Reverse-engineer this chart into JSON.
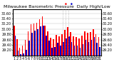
{
  "title": "Milwaukee Barometric Pressure  Daily High/Low",
  "background_color": "#ffffff",
  "high_color": "#ff0000",
  "low_color": "#0000cc",
  "ylim": [
    29.0,
    30.75
  ],
  "ytick_right": [
    29.2,
    29.4,
    29.6,
    29.8,
    30.0,
    30.2,
    30.4,
    30.6
  ],
  "days": [
    "1",
    "2",
    "3",
    "4",
    "5",
    "6",
    "7",
    "8",
    "9",
    "10",
    "11",
    "12",
    "13",
    "14",
    "15",
    "16",
    "17",
    "18",
    "19",
    "20",
    "21",
    "22",
    "23",
    "24",
    "25",
    "26",
    "27",
    "28",
    "29",
    "30",
    "31"
  ],
  "highs": [
    30.12,
    29.62,
    29.3,
    29.38,
    29.58,
    29.92,
    30.18,
    30.22,
    30.25,
    30.38,
    30.48,
    30.12,
    29.92,
    29.68,
    29.62,
    29.78,
    29.72,
    29.82,
    29.98,
    30.08,
    29.88,
    29.72,
    29.7,
    29.65,
    29.75,
    29.92,
    29.85,
    29.9,
    30.0,
    29.82,
    29.7
  ],
  "lows": [
    29.75,
    29.18,
    29.05,
    29.08,
    29.22,
    29.55,
    29.85,
    29.95,
    30.0,
    30.1,
    30.12,
    29.75,
    29.55,
    29.28,
    29.32,
    29.48,
    29.38,
    29.52,
    29.65,
    29.72,
    29.52,
    29.38,
    29.38,
    29.3,
    29.42,
    29.58,
    29.52,
    29.6,
    29.7,
    29.48,
    29.32
  ],
  "title_fontsize": 4.5,
  "tick_fontsize": 3.5,
  "vline_positions": [
    17,
    18,
    19
  ],
  "bar_width": 0.42
}
